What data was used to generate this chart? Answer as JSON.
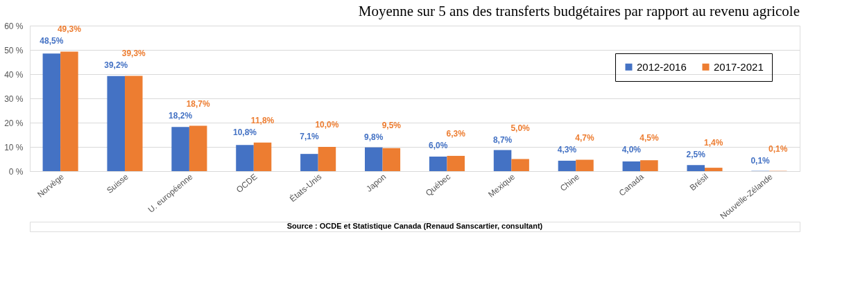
{
  "chart_data": {
    "type": "bar",
    "title": "Moyenne sur 5 ans des transferts budgétaires par rapport au revenu agricole",
    "categories": [
      "Norvège",
      "Suisse",
      "U. européenne",
      "OCDE",
      "États-Unis",
      "Japon",
      "Québec",
      "Mexique",
      "Chine",
      "Canada",
      "Brésil",
      "Nouvelle-Zélande"
    ],
    "series": [
      {
        "name": "2012-2016",
        "color": "#4472c4",
        "values": [
          48.5,
          39.2,
          18.2,
          10.8,
          7.1,
          9.8,
          6.0,
          8.7,
          4.3,
          4.0,
          2.5,
          0.1
        ],
        "value_labels": [
          "48,5%",
          "39,2%",
          "18,2%",
          "10,8%",
          "7,1%",
          "9,8%",
          "6,0%",
          "8,7%",
          "4,3%",
          "4,0%",
          "2,5%",
          "0,1%"
        ]
      },
      {
        "name": "2017-2021",
        "color": "#ed7d31",
        "values": [
          49.3,
          39.3,
          18.7,
          11.8,
          10.0,
          9.5,
          6.3,
          5.0,
          4.7,
          4.5,
          1.4,
          0.1
        ],
        "value_labels": [
          "49,3%",
          "39,3%",
          "18,7%",
          "11,8%",
          "10,0%",
          "9,5%",
          "6,3%",
          "5,0%",
          "4,7%",
          "4,5%",
          "1,4%",
          "0,1%"
        ]
      }
    ],
    "ylim": [
      0,
      60
    ],
    "yticks": [
      {
        "value": 0,
        "label": "0 %"
      },
      {
        "value": 10,
        "label": "10 %"
      },
      {
        "value": 20,
        "label": "20 %"
      },
      {
        "value": 30,
        "label": "30 %"
      },
      {
        "value": 40,
        "label": "40 %"
      },
      {
        "value": 50,
        "label": "50 %"
      },
      {
        "value": 60,
        "label": "60 %"
      }
    ],
    "grid": "y",
    "legend": "top right",
    "annotations": [
      "Source : OCDE et Statistique Canada (Renaud Sanscartier, consultant)"
    ]
  }
}
